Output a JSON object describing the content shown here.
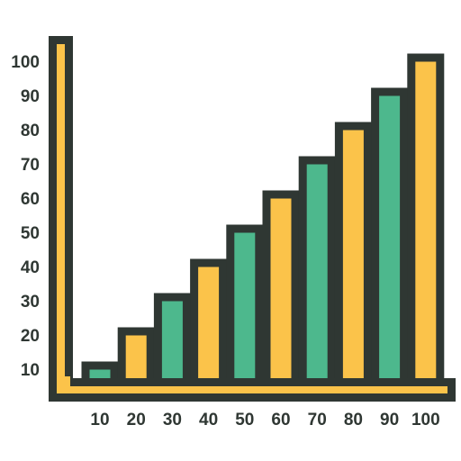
{
  "colors": {
    "outline": "#2f3733",
    "yellow": "#fbc34a",
    "green": "#4db88d",
    "label": "#2f3733"
  },
  "chart_data": {
    "type": "bar",
    "categories": [
      "10",
      "20",
      "30",
      "40",
      "50",
      "60",
      "70",
      "80",
      "90",
      "100"
    ],
    "values": [
      10,
      20,
      30,
      40,
      50,
      60,
      70,
      80,
      90,
      100
    ],
    "bar_colors": [
      "green",
      "yellow",
      "green",
      "yellow",
      "green",
      "yellow",
      "green",
      "yellow",
      "green",
      "yellow"
    ],
    "y_ticks": [
      "10",
      "20",
      "30",
      "40",
      "50",
      "60",
      "70",
      "80",
      "90",
      "100"
    ],
    "ylim": [
      0,
      100
    ],
    "title": "",
    "xlabel": "",
    "ylabel": "",
    "grid": false
  }
}
